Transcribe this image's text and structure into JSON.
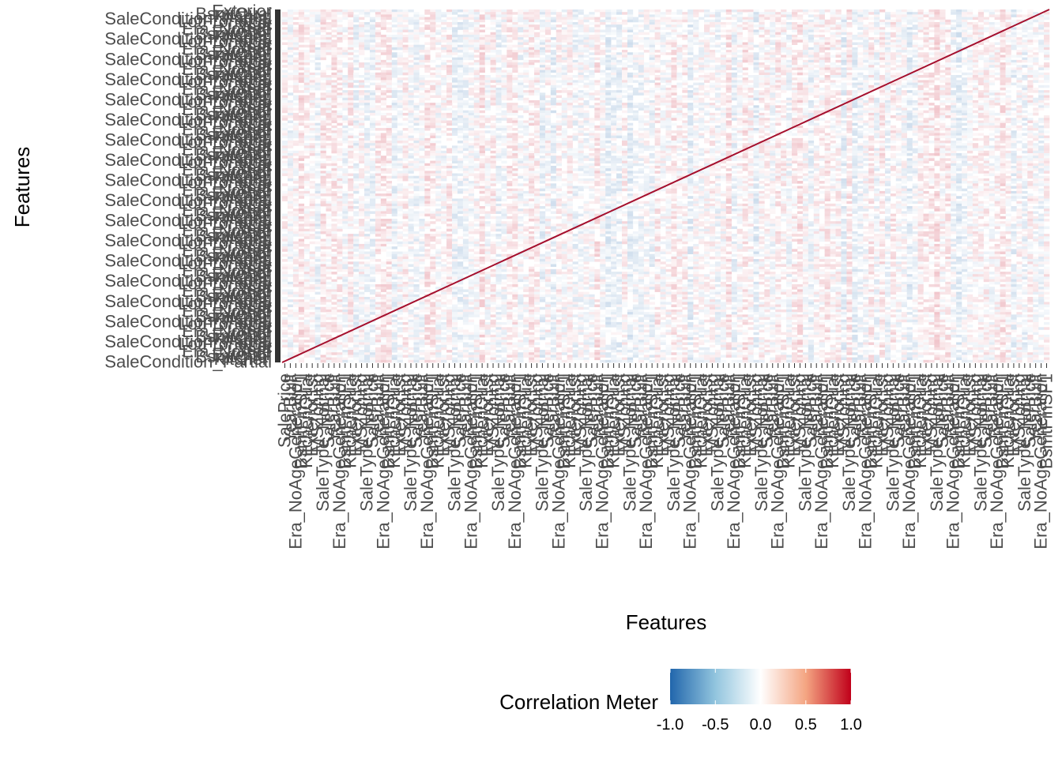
{
  "chart_data": {
    "type": "heatmap",
    "title": "",
    "xlabel": "Features",
    "ylabel": "Features",
    "diagonal_value": 1.0,
    "y_tick_labels_visible": [
      "SaleCondition_Partial",
      "Kitchen",
      "BsmtQual",
      "Exterior",
      "Era_NoAge",
      "Year",
      "Lot",
      "LotFrontage"
    ],
    "x_tick_labels_visible": [
      "SalePrice",
      "YearBuilt",
      "Era_NoAgeGeneration",
      "BsmtFinSF1",
      "KitchenQual",
      "Exterior1st",
      "MSZoning",
      "SaleType_Normal"
    ],
    "legend": {
      "title": "Correlation Meter",
      "ticks": [
        "-1.0",
        "-0.5",
        "0.0",
        "0.5",
        "1.0"
      ],
      "tick_values": [
        -1.0,
        -0.5,
        0.0,
        0.5,
        1.0
      ],
      "range": [
        -1,
        1
      ],
      "placement": "bottom",
      "colors": {
        "low": "#2166ac",
        "mid": "#ffffff",
        "high": "#c0001a"
      }
    }
  }
}
